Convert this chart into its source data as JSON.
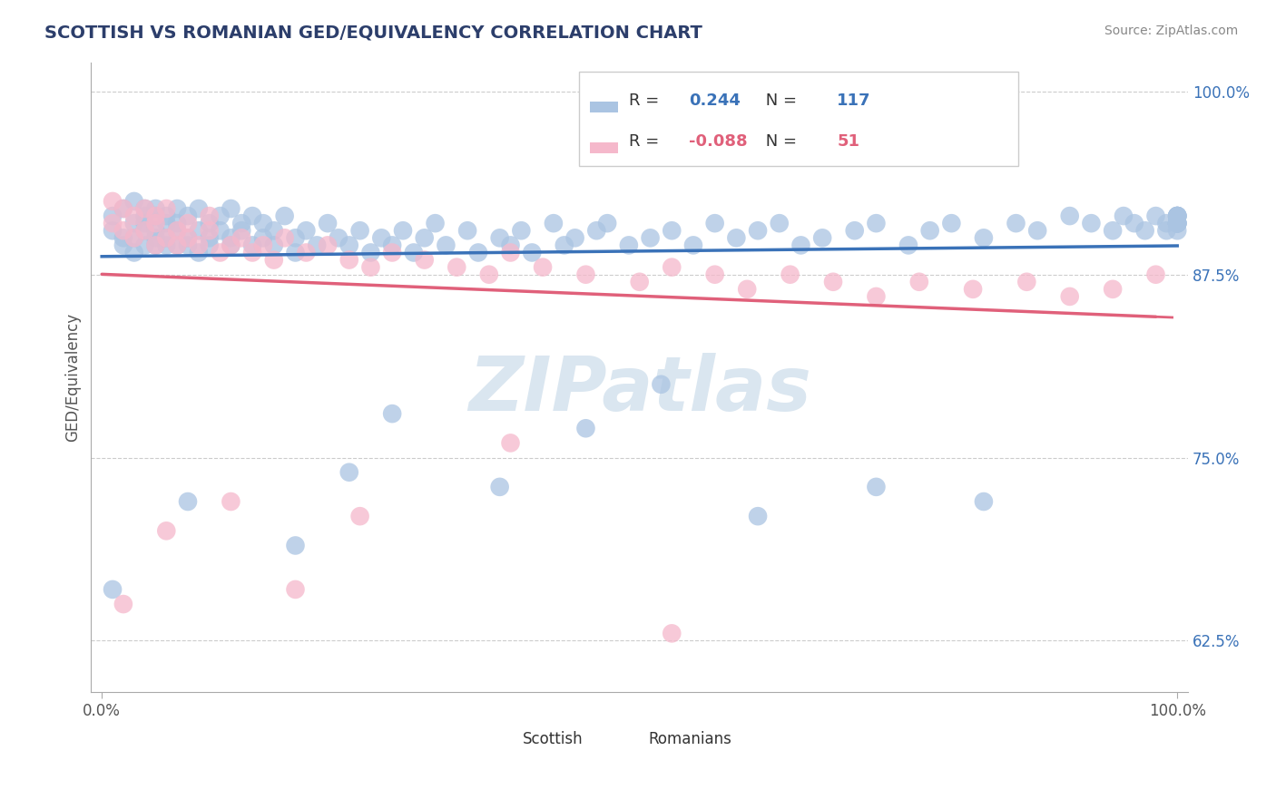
{
  "title": "SCOTTISH VS ROMANIAN GED/EQUIVALENCY CORRELATION CHART",
  "source": "Source: ZipAtlas.com",
  "ylabel": "GED/Equivalency",
  "y_ticks": [
    0.625,
    0.75,
    0.875,
    1.0
  ],
  "y_tick_labels": [
    "62.5%",
    "75.0%",
    "87.5%",
    "100.0%"
  ],
  "x_lim": [
    -0.01,
    1.01
  ],
  "y_lim": [
    0.59,
    1.02
  ],
  "scottish_R": 0.244,
  "scottish_N": 117,
  "romanian_R": -0.088,
  "romanian_N": 51,
  "scottish_color": "#aac4e2",
  "scottish_line_color": "#3a72b8",
  "romanian_color": "#f5b8cb",
  "romanian_line_color": "#e0607a",
  "background_color": "#ffffff",
  "title_color": "#2c3e6b",
  "title_fontsize": 14,
  "source_fontsize": 10,
  "watermark_text": "ZIPatlas",
  "watermark_color": "#dae6f0",
  "scottish_x": [
    0.01,
    0.01,
    0.02,
    0.02,
    0.02,
    0.03,
    0.03,
    0.03,
    0.03,
    0.04,
    0.04,
    0.04,
    0.04,
    0.04,
    0.05,
    0.05,
    0.05,
    0.05,
    0.05,
    0.06,
    0.06,
    0.06,
    0.06,
    0.07,
    0.07,
    0.07,
    0.07,
    0.08,
    0.08,
    0.08,
    0.09,
    0.09,
    0.09,
    0.1,
    0.1,
    0.1,
    0.11,
    0.11,
    0.12,
    0.12,
    0.12,
    0.13,
    0.13,
    0.14,
    0.14,
    0.15,
    0.15,
    0.16,
    0.16,
    0.17,
    0.18,
    0.18,
    0.19,
    0.2,
    0.21,
    0.22,
    0.23,
    0.24,
    0.25,
    0.26,
    0.27,
    0.28,
    0.29,
    0.3,
    0.31,
    0.32,
    0.34,
    0.35,
    0.37,
    0.38,
    0.39,
    0.4,
    0.42,
    0.43,
    0.44,
    0.46,
    0.47,
    0.49,
    0.51,
    0.53,
    0.55,
    0.57,
    0.59,
    0.61,
    0.63,
    0.65,
    0.67,
    0.7,
    0.72,
    0.75,
    0.77,
    0.79,
    0.82,
    0.85,
    0.87,
    0.9,
    0.92,
    0.94,
    0.95,
    0.96,
    0.97,
    0.98,
    0.99,
    0.99,
    1.0,
    1.0,
    1.0,
    1.0,
    1.0,
    1.0,
    1.0,
    1.0,
    1.0,
    1.0,
    1.0,
    1.0,
    1.0
  ],
  "scottish_y": [
    0.905,
    0.915,
    0.9,
    0.92,
    0.895,
    0.91,
    0.9,
    0.925,
    0.89,
    0.915,
    0.905,
    0.895,
    0.92,
    0.91,
    0.9,
    0.915,
    0.895,
    0.905,
    0.92,
    0.91,
    0.895,
    0.9,
    0.915,
    0.905,
    0.92,
    0.895,
    0.91,
    0.9,
    0.915,
    0.895,
    0.905,
    0.92,
    0.89,
    0.91,
    0.9,
    0.895,
    0.915,
    0.905,
    0.9,
    0.92,
    0.895,
    0.91,
    0.905,
    0.895,
    0.915,
    0.9,
    0.91,
    0.895,
    0.905,
    0.915,
    0.9,
    0.89,
    0.905,
    0.895,
    0.91,
    0.9,
    0.895,
    0.905,
    0.89,
    0.9,
    0.895,
    0.905,
    0.89,
    0.9,
    0.91,
    0.895,
    0.905,
    0.89,
    0.9,
    0.895,
    0.905,
    0.89,
    0.91,
    0.895,
    0.9,
    0.905,
    0.91,
    0.895,
    0.9,
    0.905,
    0.895,
    0.91,
    0.9,
    0.905,
    0.91,
    0.895,
    0.9,
    0.905,
    0.91,
    0.895,
    0.905,
    0.91,
    0.9,
    0.91,
    0.905,
    0.915,
    0.91,
    0.905,
    0.915,
    0.91,
    0.905,
    0.915,
    0.91,
    0.905,
    0.915,
    0.91,
    0.915,
    0.91,
    0.905,
    0.915,
    0.91,
    0.915,
    0.91,
    0.915,
    0.91,
    0.915,
    0.91
  ],
  "romanian_x": [
    0.01,
    0.01,
    0.02,
    0.02,
    0.03,
    0.03,
    0.04,
    0.04,
    0.05,
    0.05,
    0.05,
    0.06,
    0.06,
    0.07,
    0.07,
    0.08,
    0.08,
    0.09,
    0.1,
    0.1,
    0.11,
    0.12,
    0.13,
    0.14,
    0.15,
    0.16,
    0.17,
    0.19,
    0.21,
    0.23,
    0.25,
    0.27,
    0.3,
    0.33,
    0.36,
    0.38,
    0.41,
    0.45,
    0.5,
    0.53,
    0.57,
    0.6,
    0.64,
    0.68,
    0.72,
    0.76,
    0.81,
    0.86,
    0.9,
    0.94,
    0.98
  ],
  "romanian_y": [
    0.91,
    0.925,
    0.905,
    0.92,
    0.915,
    0.9,
    0.92,
    0.905,
    0.915,
    0.895,
    0.91,
    0.9,
    0.92,
    0.905,
    0.895,
    0.91,
    0.9,
    0.895,
    0.905,
    0.915,
    0.89,
    0.895,
    0.9,
    0.89,
    0.895,
    0.885,
    0.9,
    0.89,
    0.895,
    0.885,
    0.88,
    0.89,
    0.885,
    0.88,
    0.875,
    0.89,
    0.88,
    0.875,
    0.87,
    0.88,
    0.875,
    0.865,
    0.875,
    0.87,
    0.86,
    0.87,
    0.865,
    0.87,
    0.86,
    0.865,
    0.875
  ],
  "scottish_outlier_x": [
    0.01,
    0.08,
    0.18,
    0.23,
    0.27,
    0.37,
    0.45,
    0.52,
    0.61,
    0.72,
    0.82
  ],
  "scottish_outlier_y": [
    0.66,
    0.72,
    0.69,
    0.74,
    0.78,
    0.73,
    0.77,
    0.8,
    0.71,
    0.73,
    0.72
  ],
  "romanian_outlier_x": [
    0.02,
    0.06,
    0.12,
    0.18,
    0.24,
    0.38,
    0.53
  ],
  "romanian_outlier_y": [
    0.65,
    0.7,
    0.72,
    0.66,
    0.71,
    0.76,
    0.63
  ]
}
